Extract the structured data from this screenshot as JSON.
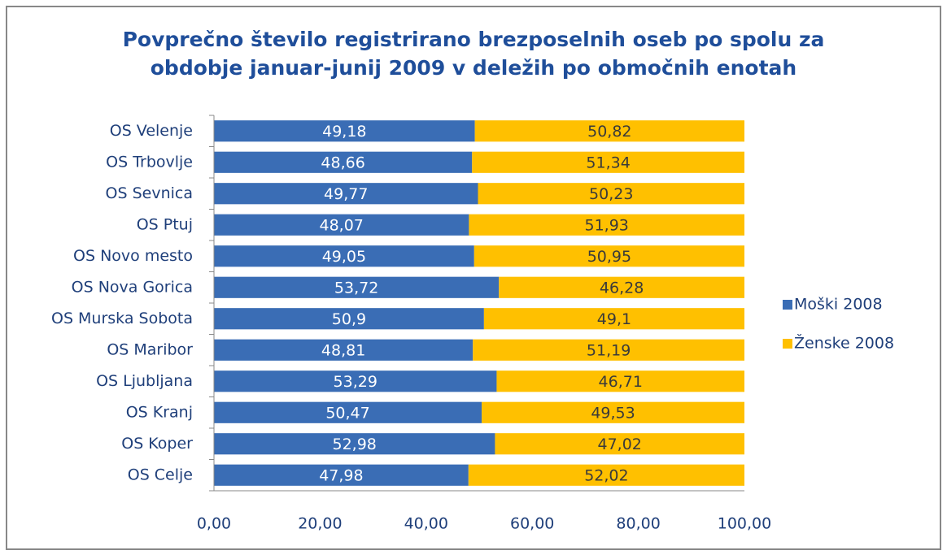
{
  "chart_data": {
    "type": "bar",
    "orientation": "horizontal",
    "stacked": true,
    "title": [
      "Povprečno število registrirano brezposelnih oseb po spolu za",
      "obdobje januar-junij 2009  v deležih po območnih enotah"
    ],
    "categories": [
      "OS Velenje",
      "OS Trbovlje",
      "OS Sevnica",
      "OS Ptuj",
      "OS Novo mesto",
      "OS Nova Gorica",
      "OS Murska Sobota",
      "OS Maribor",
      "OS Ljubljana",
      "OS Kranj",
      "OS Koper",
      "OS Celje"
    ],
    "series": [
      {
        "name": "Moški 2008",
        "color": "#3a6db5",
        "label_color": "#ffffff",
        "values": [
          49.18,
          48.66,
          49.77,
          48.07,
          49.05,
          53.72,
          50.9,
          48.81,
          53.29,
          50.47,
          52.98,
          47.98
        ],
        "value_labels": [
          "49,18",
          "48,66",
          "49,77",
          "48,07",
          "49,05",
          "53,72",
          "50,9",
          "48,81",
          "53,29",
          "50,47",
          "52,98",
          "47,98"
        ]
      },
      {
        "name": "Ženske 2008",
        "color": "#ffc000",
        "label_color": "#3a3a3a",
        "values": [
          50.82,
          51.34,
          50.23,
          51.93,
          50.95,
          46.28,
          49.1,
          51.19,
          46.71,
          49.53,
          47.02,
          52.02
        ],
        "value_labels": [
          "50,82",
          "51,34",
          "50,23",
          "51,93",
          "50,95",
          "46,28",
          "49,1",
          "51,19",
          "46,71",
          "49,53",
          "47,02",
          "52,02"
        ]
      }
    ],
    "xlim": [
      0,
      100
    ],
    "xticks": [
      {
        "value": 0,
        "label": "0,00"
      },
      {
        "value": 20,
        "label": "20,00"
      },
      {
        "value": 40,
        "label": "40,00"
      },
      {
        "value": 60,
        "label": "60,00"
      },
      {
        "value": 80,
        "label": "80,00"
      },
      {
        "value": 100,
        "label": "100,00"
      }
    ],
    "legend": "right"
  }
}
